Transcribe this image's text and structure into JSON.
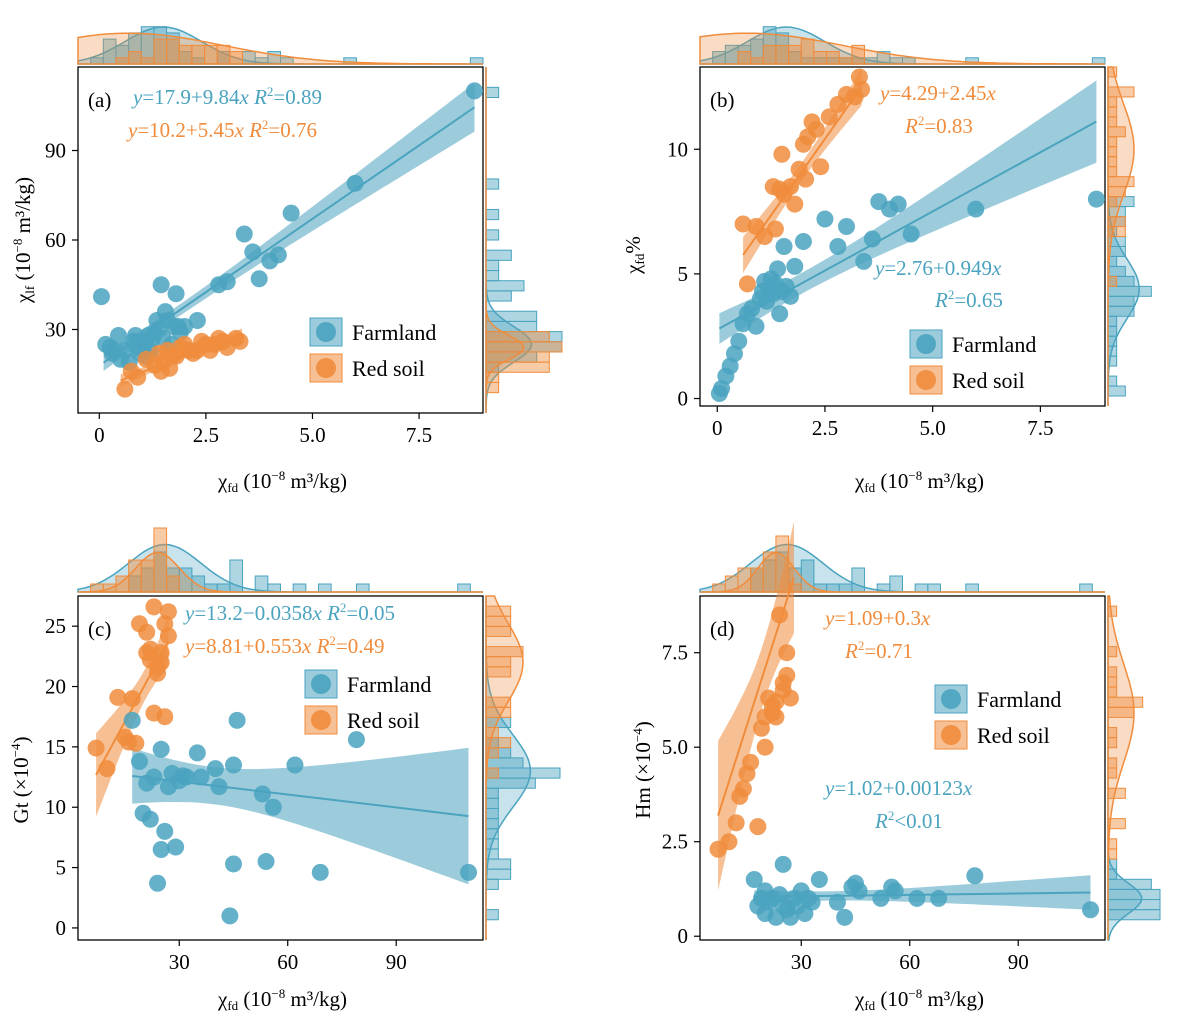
{
  "colors": {
    "farmland": "#4aa3bf",
    "redsoil": "#f08c3c",
    "axis": "#000000"
  },
  "icon_names": {
    "legend_marker": "circle"
  },
  "chart_data": [
    {
      "type": "scatter",
      "panel_label": "(a)",
      "xlabel": {
        "main": "χ",
        "sub": "fd",
        "rest": " (10",
        "sup": "−8",
        "tail": " m³/kg)"
      },
      "ylabel": {
        "main": "χ",
        "sub": "lf",
        "rest": " (10",
        "sup": "−8",
        "tail": " m³/kg)"
      },
      "xlim": [
        -0.5,
        9.0
      ],
      "ylim": [
        2,
        118
      ],
      "xticks": [
        0,
        2.5,
        5.0,
        7.5
      ],
      "xtick_labels": [
        "0",
        "2.5",
        "5.0",
        "7.5"
      ],
      "yticks": [
        30,
        60,
        90
      ],
      "ytick_labels": [
        "30",
        "60",
        "90"
      ],
      "legend": {
        "position": "bottom-right",
        "items": [
          "Farmland",
          "Red soil"
        ]
      },
      "equations": [
        {
          "series": "Farmland",
          "prefix": "y",
          "text": "=17.9+9.84",
          "var": "x",
          "r2_label": "R",
          "r2_value": "=0.89"
        },
        {
          "series": "Red soil",
          "prefix": "y",
          "text": "=10.2+5.45",
          "var": "x",
          "r2_label": "R",
          "r2_value": "=0.76"
        }
      ],
      "series": [
        {
          "name": "Farmland",
          "fit": {
            "intercept": 17.9,
            "slope": 9.84,
            "range": [
              0.1,
              8.8
            ]
          },
          "x": [
            0.05,
            0.15,
            0.25,
            0.3,
            0.35,
            0.45,
            0.5,
            0.6,
            0.7,
            0.8,
            0.85,
            0.9,
            0.95,
            1.0,
            1.05,
            1.1,
            1.15,
            1.2,
            1.25,
            1.3,
            1.35,
            1.4,
            1.45,
            1.5,
            1.55,
            1.6,
            1.7,
            1.75,
            1.8,
            1.85,
            1.9,
            2.0,
            2.3,
            2.8,
            3.0,
            3.4,
            3.6,
            3.75,
            4.0,
            4.2,
            4.5,
            6.0,
            8.8
          ],
          "y": [
            41,
            25,
            24,
            22,
            23,
            28,
            20,
            23,
            19,
            26,
            28,
            24,
            22,
            26,
            25,
            21,
            28,
            23,
            27,
            29,
            33,
            30,
            45,
            27,
            36,
            33,
            25,
            31,
            42,
            31,
            29,
            31,
            33,
            45,
            46,
            62,
            56,
            47,
            53,
            55,
            69,
            79,
            110
          ]
        },
        {
          "name": "Red soil",
          "fit": {
            "intercept": 10.2,
            "slope": 5.45,
            "range": [
              0.5,
              3.35
            ]
          },
          "x": [
            0.6,
            0.75,
            0.9,
            1.1,
            1.3,
            1.4,
            1.45,
            1.5,
            1.6,
            1.65,
            1.7,
            1.8,
            1.9,
            2.0,
            2.1,
            2.2,
            2.3,
            2.4,
            2.5,
            2.6,
            2.7,
            2.8,
            2.9,
            3.0,
            3.2,
            3.3
          ],
          "y": [
            10,
            16,
            14,
            20,
            18,
            22,
            16,
            19,
            23,
            17,
            21,
            21,
            24,
            25,
            23,
            22,
            23,
            26,
            25,
            23,
            25,
            27,
            26,
            24,
            27,
            26
          ]
        }
      ]
    },
    {
      "type": "scatter",
      "panel_label": "(b)",
      "xlabel": {
        "main": "χ",
        "sub": "fd",
        "rest": " (10",
        "sup": "−8",
        "tail": " m³/kg)"
      },
      "ylabel": {
        "main": "χ",
        "sub": "fd",
        "rest": "%",
        "sup": "",
        "tail": ""
      },
      "xlim": [
        -0.4,
        9.0
      ],
      "ylim": [
        -0.3,
        13.3
      ],
      "xticks": [
        0,
        2.5,
        5.0,
        7.5
      ],
      "xtick_labels": [
        "0",
        "2.5",
        "5.0",
        "7.5"
      ],
      "yticks": [
        0,
        5,
        10
      ],
      "ytick_labels": [
        "0",
        "5",
        "10"
      ],
      "legend": {
        "position": "bottom-right",
        "items": [
          "Farmland",
          "Red soil"
        ]
      },
      "equations": [
        {
          "series": "Red soil",
          "prefix": "y",
          "text": "=4.29+2.45",
          "var": "x",
          "r2_label": "R",
          "r2_value": "=0.83"
        },
        {
          "series": "Farmland",
          "prefix": "y",
          "text": "=2.76+0.949",
          "var": "x",
          "r2_label": "R",
          "r2_value": "=0.65"
        }
      ],
      "series": [
        {
          "name": "Farmland",
          "fit": {
            "intercept": 2.76,
            "slope": 0.949,
            "range": [
              0.05,
              8.8
            ]
          },
          "x": [
            0.05,
            0.1,
            0.2,
            0.3,
            0.4,
            0.5,
            0.6,
            0.7,
            0.8,
            0.9,
            1.0,
            1.05,
            1.1,
            1.15,
            1.2,
            1.25,
            1.3,
            1.35,
            1.4,
            1.45,
            1.5,
            1.55,
            1.6,
            1.7,
            1.8,
            2.0,
            2.5,
            2.8,
            3.0,
            3.4,
            3.6,
            3.75,
            4.0,
            4.2,
            4.5,
            6.0,
            8.8
          ],
          "y": [
            0.2,
            0.4,
            0.9,
            1.3,
            1.8,
            2.3,
            3.0,
            3.4,
            3.6,
            2.9,
            4.0,
            4.3,
            4.7,
            3.9,
            4.4,
            4.8,
            4.2,
            4.6,
            5.2,
            3.4,
            4.3,
            6.1,
            4.5,
            4.1,
            5.3,
            6.3,
            7.2,
            6.1,
            6.9,
            5.5,
            6.4,
            7.9,
            7.6,
            7.8,
            6.6,
            7.6,
            8.0
          ]
        },
        {
          "name": "Red soil",
          "fit": {
            "intercept": 4.29,
            "slope": 2.45,
            "range": [
              0.6,
              3.35
            ]
          },
          "x": [
            0.6,
            0.7,
            0.9,
            1.1,
            1.3,
            1.35,
            1.45,
            1.5,
            1.55,
            1.7,
            1.8,
            1.9,
            2.0,
            2.05,
            2.1,
            2.2,
            2.3,
            2.4,
            2.6,
            2.8,
            3.0,
            3.2,
            3.3,
            3.35
          ],
          "y": [
            7.0,
            4.6,
            6.9,
            6.5,
            8.5,
            6.8,
            8.4,
            9.8,
            8.2,
            8.5,
            7.8,
            9.2,
            10.2,
            8.8,
            10.5,
            11.1,
            10.8,
            9.3,
            11.3,
            11.8,
            12.2,
            12.1,
            12.9,
            12.4
          ]
        }
      ]
    },
    {
      "type": "scatter",
      "panel_label": "(c)",
      "xlabel": {
        "main": "χ",
        "sub": "fd",
        "rest": " (10",
        "sup": "−8",
        "tail": " m³/kg)"
      },
      "ylabel": {
        "main": "Gt (×10",
        "sub": "",
        "rest": "",
        "sup": "−4",
        "tail": ")"
      },
      "xlim": [
        2,
        114
      ],
      "ylim": [
        -1,
        27.5
      ],
      "xticks": [
        30,
        60,
        90
      ],
      "xtick_labels": [
        "30",
        "60",
        "90"
      ],
      "yticks": [
        0,
        5,
        10,
        15,
        20,
        25
      ],
      "ytick_labels": [
        "0",
        "5",
        "10",
        "15",
        "20",
        "25"
      ],
      "legend": {
        "position": "top-right",
        "items": [
          "Farmland",
          "Red soil"
        ]
      },
      "equations": [
        {
          "series": "Farmland",
          "prefix": "y",
          "text": "=13.2−0.0358",
          "var": "x",
          "r2_label": "R",
          "r2_value": "=0.05"
        },
        {
          "series": "Red soil",
          "prefix": "y",
          "text": "=8.81+0.553",
          "var": "x",
          "r2_label": "R",
          "r2_value": "=0.49"
        }
      ],
      "series": [
        {
          "name": "Farmland",
          "fit": {
            "intercept": 13.2,
            "slope": -0.0358,
            "range": [
              17,
              110
            ]
          },
          "x": [
            17,
            19,
            20,
            21,
            22,
            23,
            24,
            25,
            25,
            26,
            27,
            28,
            29,
            30,
            31,
            32,
            35,
            36,
            40,
            41,
            44,
            45,
            45,
            46,
            53,
            54,
            56,
            62,
            69,
            79,
            110
          ],
          "y": [
            17.2,
            13.8,
            9.5,
            12.0,
            9.0,
            12.5,
            3.7,
            6.5,
            14.8,
            8.0,
            11.7,
            12.8,
            6.7,
            12.2,
            12.6,
            12.5,
            14.5,
            12.5,
            13.2,
            11.7,
            1.0,
            5.3,
            13.5,
            17.2,
            11.1,
            5.5,
            10.0,
            13.5,
            4.6,
            15.6,
            4.6
          ]
        },
        {
          "name": "Red soil",
          "fit": {
            "intercept": 8.81,
            "slope": 0.553,
            "range": [
              7,
              27
            ]
          },
          "x": [
            7,
            10,
            13,
            15,
            16,
            17,
            18,
            19,
            21,
            21,
            22,
            22,
            23,
            23,
            24,
            24,
            25,
            25,
            26,
            26,
            27,
            27
          ],
          "y": [
            14.9,
            13.2,
            19.1,
            15.8,
            15.4,
            19.0,
            15.3,
            25.2,
            22.8,
            24.5,
            23.1,
            22.2,
            26.6,
            17.8,
            21.1,
            21.6,
            22.0,
            22.8,
            25.2,
            17.5,
            26.2,
            24.2
          ]
        }
      ]
    },
    {
      "type": "scatter",
      "panel_label": "(d)",
      "xlabel": {
        "main": "χ",
        "sub": "fd",
        "rest": " (10",
        "sup": "−8",
        "tail": " m³/kg)"
      },
      "ylabel": {
        "main": "Hm (×10",
        "sub": "",
        "rest": "",
        "sup": "−4",
        "tail": ")"
      },
      "xlim": [
        2,
        114
      ],
      "ylim": [
        -0.1,
        9.0
      ],
      "xticks": [
        30,
        60,
        90
      ],
      "xtick_labels": [
        "30",
        "60",
        "90"
      ],
      "yticks": [
        0,
        2.5,
        5.0,
        7.5
      ],
      "ytick_labels": [
        "0",
        "2.5",
        "5.0",
        "7.5"
      ],
      "legend": {
        "position": "center-right",
        "items": [
          "Farmland",
          "Red soil"
        ]
      },
      "equations": [
        {
          "series": "Red soil",
          "prefix": "y",
          "text": "=1.09+0.3",
          "var": "x",
          "r2_label": "R",
          "r2_value": "=0.71"
        },
        {
          "series": "Farmland",
          "prefix": "y",
          "text": "=1.02+0.00123",
          "var": "x",
          "r2_label": "R",
          "r2_value": "<0.01"
        }
      ],
      "series": [
        {
          "name": "Farmland",
          "fit": {
            "intercept": 1.02,
            "slope": 0.00123,
            "range": [
              17,
              110
            ]
          },
          "x": [
            17,
            18,
            19,
            20,
            20,
            21,
            22,
            23,
            24,
            25,
            25,
            26,
            27,
            28,
            29,
            30,
            31,
            32,
            33,
            35,
            40,
            42,
            44,
            45,
            46,
            52,
            55,
            56,
            62,
            68,
            78,
            110
          ],
          "y": [
            1.5,
            0.8,
            1.0,
            0.6,
            1.2,
            0.9,
            1.0,
            0.5,
            1.1,
            0.8,
            1.9,
            0.7,
            0.5,
            1.0,
            0.8,
            1.2,
            0.6,
            1.0,
            0.9,
            1.5,
            0.9,
            0.5,
            1.3,
            1.4,
            1.2,
            1.0,
            1.3,
            1.2,
            1.0,
            1.0,
            1.6,
            0.7
          ]
        },
        {
          "name": "Red soil",
          "fit": {
            "intercept": 1.09,
            "slope": 0.3,
            "range": [
              7,
              28
            ]
          },
          "x": [
            7,
            10,
            12,
            13,
            14,
            15,
            16,
            18,
            19,
            20,
            20,
            21,
            22,
            22,
            23,
            23,
            24,
            25,
            25,
            26,
            26,
            27
          ],
          "y": [
            2.3,
            2.5,
            3.0,
            3.7,
            3.9,
            4.3,
            4.6,
            2.9,
            5.5,
            5.0,
            5.8,
            6.3,
            5.9,
            6.1,
            6.2,
            5.8,
            8.5,
            6.5,
            6.7,
            7.5,
            6.9,
            6.3
          ]
        }
      ]
    }
  ]
}
